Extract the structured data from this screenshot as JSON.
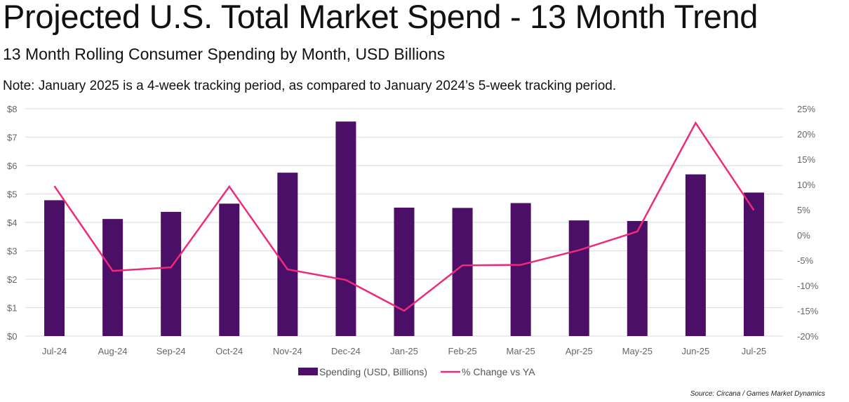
{
  "header": {
    "title": "Projected U.S. Total Market Spend - 13 Month Trend",
    "subtitle": "13 Month Rolling Consumer Spending by Month, USD Billions",
    "note": "Note: January 2025 is a 4-week tracking period, as compared to January 2024’s 5-week tracking period."
  },
  "source": "Source: Circana / Games Market Dynamics",
  "colors": {
    "bar": "#4B0F68",
    "line": "#EE2A7B",
    "grid": "#E0E0E0"
  },
  "chart_data": {
    "type": "bar",
    "title": "Projected U.S. Total Market Spend - 13 Month Trend",
    "categories": [
      "Jul-24",
      "Aug-24",
      "Sep-24",
      "Oct-24",
      "Nov-24",
      "Dec-24",
      "Jan-25",
      "Feb-25",
      "Mar-25",
      "Apr-25",
      "May-25",
      "Jun-25",
      "Jul-25"
    ],
    "series": [
      {
        "name": "Spending (USD, Billions)",
        "type": "bar",
        "axis": "left",
        "values": [
          4.78,
          4.12,
          4.37,
          4.66,
          5.75,
          7.55,
          4.52,
          4.51,
          4.68,
          4.07,
          4.05,
          5.69,
          5.05
        ]
      },
      {
        "name": "% Change vs YA",
        "type": "line",
        "axis": "right",
        "values": [
          9.7,
          -7.1,
          -6.4,
          9.6,
          -6.8,
          -8.9,
          -15.0,
          -6.0,
          -5.9,
          -3.0,
          0.7,
          22.2,
          4.9
        ]
      }
    ],
    "y_left": {
      "ylim": [
        0,
        8
      ],
      "ticks": [
        "$0",
        "$1",
        "$2",
        "$3",
        "$4",
        "$5",
        "$6",
        "$7",
        "$8"
      ]
    },
    "y_right": {
      "ylim": [
        -20,
        25
      ],
      "ticks": [
        "-20%",
        "-15%",
        "-10%",
        "-5%",
        "0%",
        "5%",
        "10%",
        "15%",
        "20%",
        "25%"
      ]
    },
    "grid": true,
    "legend_position": "bottom"
  }
}
